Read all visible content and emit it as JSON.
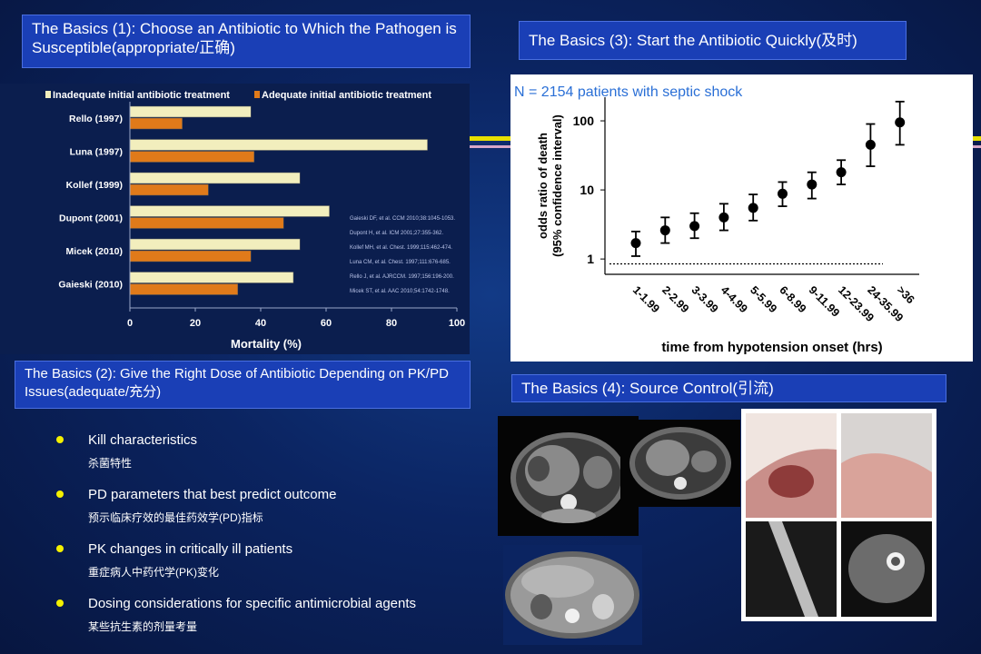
{
  "slide1": {
    "title": "The Basics (1): Choose an Antibiotic to Which the Pathogen is Susceptible(appropriate/正确)",
    "chart_data": {
      "type": "bar",
      "orientation": "horizontal",
      "categories": [
        "Rello (1997)",
        "Luna (1997)",
        "Kollef (1999)",
        "Dupont (2001)",
        "Micek (2010)",
        "Gaieski (2010)"
      ],
      "series": [
        {
          "name": "Inadequate initial antibiotic treatment",
          "values": [
            37,
            91,
            52,
            61,
            52,
            50
          ],
          "color": "#f2eebd"
        },
        {
          "name": "Adequate initial antibiotic treatment",
          "values": [
            16,
            38,
            24,
            47,
            37,
            33
          ],
          "color": "#e07a1a"
        }
      ],
      "xlabel": "Mortality (%)",
      "xlim": [
        0,
        100
      ],
      "xticks": [
        0,
        20,
        40,
        60,
        80,
        100
      ],
      "legend": "top",
      "references": [
        "Gaieski DF, et al. CCM 2010;38:1045-1053.",
        "Dupont H, et al. ICM 2001;27:355-362.",
        "Kollef MH, et al. Chest. 1999;115:462-474.",
        "Luna CM, et al. Chest. 1997;111:676-685.",
        "Rello J, et al. AJRCCM. 1997;156:196-200.",
        "Micek ST, et al. AAC 2010;54:1742-1748."
      ]
    }
  },
  "slide2": {
    "title": "The Basics (2): Give the Right Dose of Antibiotic Depending on PK/PD Issues(adequate/充分)",
    "bullets": [
      {
        "en": "Kill characteristics",
        "zh": "杀菌特性"
      },
      {
        "en": "PD parameters that best predict outcome",
        "zh": "预示临床疗效的最佳药效学(PD)指标"
      },
      {
        "en": "PK changes in critically ill patients",
        "zh": "重症病人中药代学(PK)变化"
      },
      {
        "en": "Dosing considerations for specific antimicrobial agents",
        "zh": "某些抗生素的剂量考量"
      }
    ],
    "bullet_color": "#f4f000"
  },
  "slide3": {
    "title": "The Basics (3): Start the Antibiotic Quickly(及时)",
    "chart_data": {
      "type": "scatter",
      "subtitle": "N = 2154 patients with septic shock",
      "categories": [
        "1-1.99",
        "2-2.99",
        "3-3.99",
        "4-4.99",
        "5-5.99",
        "6-8.99",
        "9-11.99",
        "12-23.99",
        "24-35.99",
        ">36"
      ],
      "values": [
        1.7,
        2.6,
        3.0,
        4.0,
        5.5,
        8.8,
        12.0,
        18.0,
        45.0,
        95.0
      ],
      "ci_low": [
        1.1,
        1.7,
        2.0,
        2.6,
        3.6,
        5.8,
        7.5,
        12.0,
        22.0,
        45.0
      ],
      "ci_high": [
        2.5,
        4.0,
        4.6,
        6.3,
        8.6,
        13.0,
        18.0,
        27.0,
        90.0,
        190.0
      ],
      "xlabel": "time from hypotension onset (hrs)",
      "ylabel": "odds ratio of death (95% confidence interval)",
      "yscale": "log",
      "yticks": [
        1,
        10,
        100
      ],
      "ylim": [
        0.6,
        220
      ],
      "reference_line": 0.85
    }
  },
  "slide4": {
    "title": "The Basics (4): Source Control(引流)"
  }
}
